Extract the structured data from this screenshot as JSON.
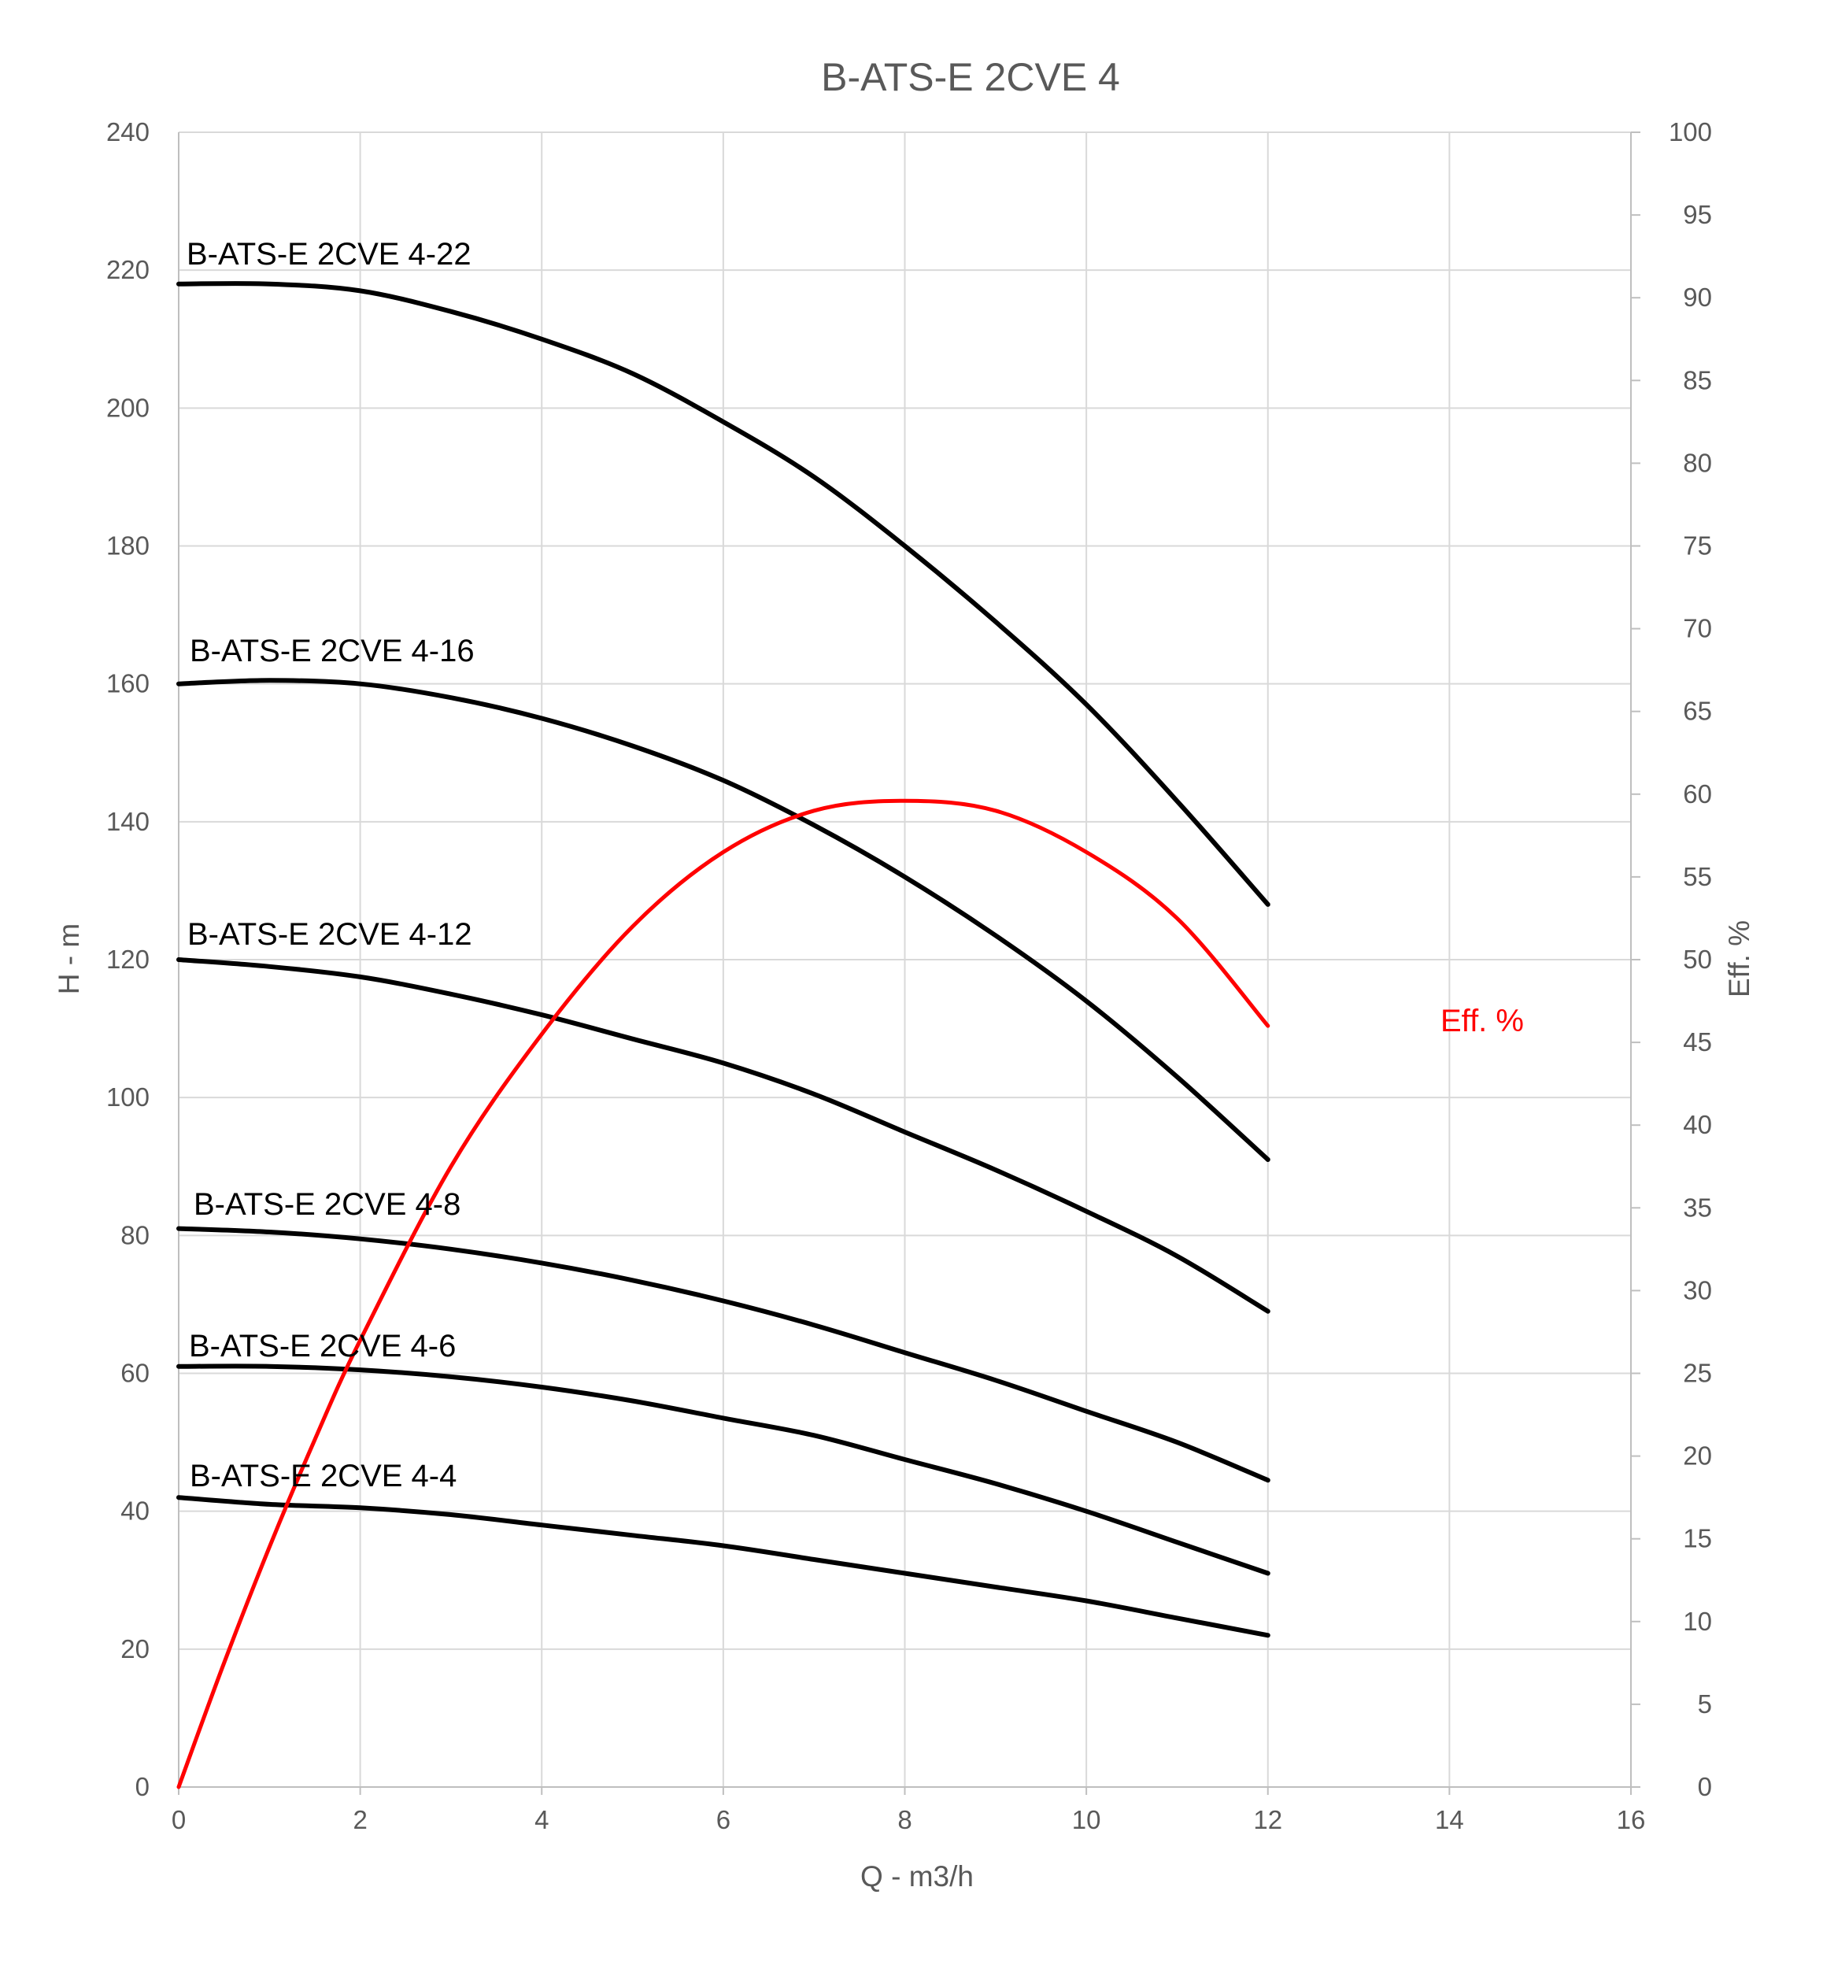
{
  "chart_data": {
    "type": "line",
    "title": "B-ATS-E 2CVE 4",
    "xlabel": "Q - m3/h",
    "ylabel": "H - m",
    "y2label": "Eff. %",
    "xlim": [
      0,
      16
    ],
    "ylim": [
      0,
      240
    ],
    "y2lim": [
      0,
      100
    ],
    "x_ticks": [
      0,
      2,
      4,
      6,
      8,
      10,
      12,
      14,
      16
    ],
    "y_ticks": [
      0,
      20,
      40,
      60,
      80,
      100,
      120,
      140,
      160,
      180,
      200,
      220,
      240
    ],
    "y2_ticks": [
      0,
      5,
      10,
      15,
      20,
      25,
      30,
      35,
      40,
      45,
      50,
      55,
      60,
      65,
      70,
      75,
      80,
      85,
      90,
      95,
      100
    ],
    "grid": true,
    "colors": {
      "head_curves": "#000000",
      "efficiency": "#ff0000"
    },
    "series": [
      {
        "name": "B-ATS-E 2CVE 4-22",
        "axis": "left",
        "x": [
          0,
          1,
          2,
          3,
          4,
          5,
          6,
          7,
          8,
          9,
          10,
          11,
          12
        ],
        "y": [
          218,
          218,
          217,
          214,
          210,
          205,
          198,
          190,
          180,
          169,
          157,
          143,
          128
        ]
      },
      {
        "name": "B-ATS-E 2CVE 4-16",
        "axis": "left",
        "x": [
          0,
          1,
          2,
          3,
          4,
          5,
          6,
          7,
          8,
          9,
          10,
          11,
          12
        ],
        "y": [
          160,
          160.5,
          160,
          158,
          155,
          151,
          146,
          139.5,
          132,
          123.5,
          114,
          103,
          91
        ]
      },
      {
        "name": "B-ATS-E 2CVE 4-12",
        "axis": "left",
        "x": [
          0,
          1,
          2,
          3,
          4,
          5,
          6,
          7,
          8,
          9,
          10,
          11,
          12
        ],
        "y": [
          120,
          119,
          117.5,
          115,
          112,
          108.5,
          105,
          100.5,
          95,
          89.5,
          83.5,
          77,
          69
        ]
      },
      {
        "name": "B-ATS-E 2CVE 4-8",
        "axis": "left",
        "x": [
          0,
          1,
          2,
          3,
          4,
          5,
          6,
          7,
          8,
          9,
          10,
          11,
          12
        ],
        "y": [
          81,
          80.5,
          79.5,
          78,
          76,
          73.5,
          70.5,
          67,
          63,
          59,
          54.5,
          50,
          44.5
        ]
      },
      {
        "name": "B-ATS-E 2CVE 4-6",
        "axis": "left",
        "x": [
          0,
          1,
          2,
          3,
          4,
          5,
          6,
          7,
          8,
          9,
          10,
          11,
          12
        ],
        "y": [
          61,
          61,
          60.5,
          59.5,
          58,
          56,
          53.5,
          51,
          47.5,
          44,
          40,
          35.5,
          31
        ]
      },
      {
        "name": "B-ATS-E 2CVE 4-4",
        "axis": "left",
        "x": [
          0,
          1,
          2,
          3,
          4,
          5,
          6,
          7,
          8,
          9,
          10,
          11,
          12
        ],
        "y": [
          42,
          41,
          40.5,
          39.5,
          38,
          36.5,
          35,
          33,
          31,
          29,
          27,
          24.5,
          22
        ]
      },
      {
        "name": "Eff. %",
        "axis": "right",
        "x": [
          0,
          0.5,
          1,
          1.5,
          2,
          3,
          4,
          5,
          6,
          7,
          8,
          9,
          10,
          11,
          12
        ],
        "y": [
          0,
          7.5,
          14.5,
          21,
          27,
          37.5,
          45.5,
          52,
          56.5,
          59,
          59.6,
          59,
          56.5,
          52.5,
          46
        ]
      }
    ]
  }
}
